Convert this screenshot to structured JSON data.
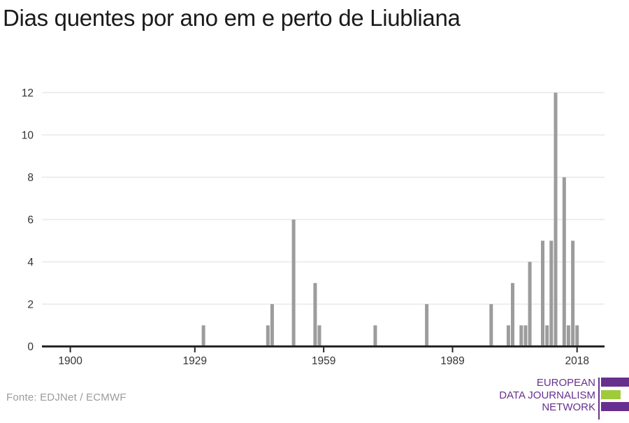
{
  "title": "Dias quentes por ano em e perto de Liubliana",
  "source_note": "Fonte: EDJNet / ECMWF",
  "logo": {
    "lines": [
      "EUROPEAN",
      "DATA JOURNALISM",
      "NETWORK"
    ],
    "purple": "#67308f",
    "green": "#9fcb3b"
  },
  "colors": {
    "bar": "#9c9c9c",
    "axis": "#262626",
    "grid": "#e8e8e8",
    "tick_label": "#333333",
    "title": "#1a1a1a",
    "source": "#9b9b9b"
  },
  "chart_data": {
    "type": "bar",
    "title": "Dias quentes por ano em e perto de Liubliana",
    "xlabel": "",
    "ylabel": "",
    "x_tick_labels": [
      1900,
      1929,
      1959,
      1989,
      2018
    ],
    "y_tick_labels": [
      0,
      2,
      4,
      6,
      8,
      10,
      12
    ],
    "ylim": [
      0,
      12
    ],
    "xlim_years": [
      1893,
      2024
    ],
    "grid": "horizontal-only",
    "legend": "none",
    "bar_color": "#9c9c9c",
    "series_name": "hot-days-per-year",
    "points": [
      {
        "year": 1931,
        "value": 1
      },
      {
        "year": 1946,
        "value": 1
      },
      {
        "year": 1947,
        "value": 2
      },
      {
        "year": 1952,
        "value": 6
      },
      {
        "year": 1957,
        "value": 3
      },
      {
        "year": 1958,
        "value": 1
      },
      {
        "year": 1971,
        "value": 1
      },
      {
        "year": 1983,
        "value": 2
      },
      {
        "year": 1998,
        "value": 2
      },
      {
        "year": 2002,
        "value": 1
      },
      {
        "year": 2003,
        "value": 3
      },
      {
        "year": 2005,
        "value": 1
      },
      {
        "year": 2006,
        "value": 1
      },
      {
        "year": 2007,
        "value": 4
      },
      {
        "year": 2010,
        "value": 5
      },
      {
        "year": 2011,
        "value": 1
      },
      {
        "year": 2012,
        "value": 5
      },
      {
        "year": 2013,
        "value": 12
      },
      {
        "year": 2015,
        "value": 8
      },
      {
        "year": 2016,
        "value": 1
      },
      {
        "year": 2017,
        "value": 5
      },
      {
        "year": 2018,
        "value": 1
      }
    ],
    "unlisted_years_value": 0
  }
}
